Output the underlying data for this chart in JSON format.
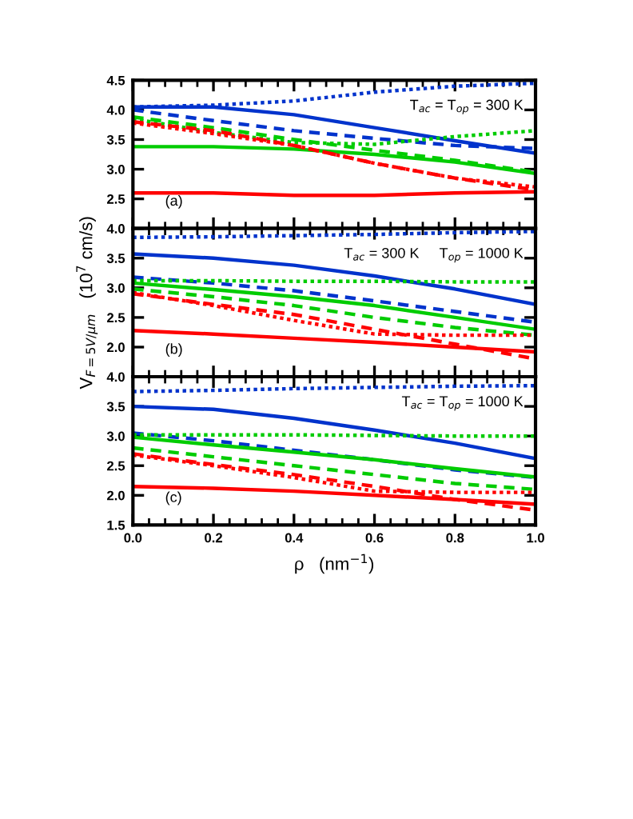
{
  "chart_data": [
    {
      "type": "line",
      "annotations": [
        "(a)",
        "T$_{ac}$ = T$_{op}$ = 300 K"
      ],
      "x": [
        0,
        0.2,
        0.4,
        0.6,
        0.8,
        1.0
      ],
      "xlim": [
        0,
        1
      ],
      "xticks": [
        0.0,
        0.2,
        0.4,
        0.6,
        0.8,
        1.0
      ],
      "ylim": [
        2.0,
        4.5
      ],
      "yticks": [
        2.5,
        {
          "value": 3,
          "label": "3.0"
        },
        3.5,
        {
          "value": 4,
          "label": "4.0"
        },
        4.5
      ],
      "tick_labels": "y",
      "legend": false,
      "grid": false,
      "series": [
        {
          "color": "#0033cc",
          "line_style": "dotted",
          "values": [
            4.05,
            4.08,
            4.15,
            4.3,
            4.4,
            4.45
          ]
        },
        {
          "color": "#0033cc",
          "line_style": "solid",
          "values": [
            4.05,
            4.05,
            3.92,
            3.7,
            3.48,
            3.27
          ]
        },
        {
          "color": "#0033cc",
          "line_style": "dashed",
          "values": [
            4.0,
            3.82,
            3.65,
            3.52,
            3.4,
            3.35
          ]
        },
        {
          "color": "#00cc00",
          "line_style": "dotted",
          "values": [
            3.85,
            3.62,
            3.45,
            3.42,
            3.55,
            3.65
          ]
        },
        {
          "color": "#00cc00",
          "line_style": "solid",
          "values": [
            3.38,
            3.38,
            3.34,
            3.25,
            3.12,
            2.93
          ]
        },
        {
          "color": "#00cc00",
          "line_style": "dashed",
          "values": [
            3.88,
            3.7,
            3.5,
            3.32,
            3.15,
            2.95
          ]
        },
        {
          "color": "#ff0000",
          "line_style": "dotted",
          "values": [
            3.78,
            3.6,
            3.4,
            3.1,
            2.85,
            2.7
          ]
        },
        {
          "color": "#ff0000",
          "line_style": "dashed",
          "values": [
            3.8,
            3.65,
            3.4,
            3.1,
            2.85,
            2.65
          ]
        },
        {
          "color": "#ff0000",
          "line_style": "solid",
          "values": [
            2.6,
            2.6,
            2.56,
            2.56,
            2.6,
            2.62
          ]
        }
      ]
    },
    {
      "type": "line",
      "ylabel": "V$_{F=5V/μm}$   (10$^{7}$ cm/s)",
      "annotations": [
        "(b)",
        "T$_{ac}$ = 300 K     T$_{op}$ = 1000 K"
      ],
      "x": [
        0,
        0.2,
        0.4,
        0.6,
        0.8,
        1.0
      ],
      "xlim": [
        0,
        1
      ],
      "xticks": [
        0.0,
        0.2,
        0.4,
        0.6,
        0.8,
        1.0
      ],
      "ylim": [
        1.5,
        4.0
      ],
      "yticks": [
        {
          "value": 2,
          "label": "2.0"
        },
        2.5,
        {
          "value": 3,
          "label": "3.0"
        },
        3.5,
        {
          "value": 4,
          "label": "4.0"
        }
      ],
      "tick_labels": "y",
      "legend": false,
      "grid": false,
      "series": [
        {
          "color": "#0033cc",
          "line_style": "dotted",
          "values": [
            3.85,
            3.86,
            3.88,
            3.9,
            3.93,
            3.95
          ]
        },
        {
          "color": "#0033cc",
          "line_style": "solid",
          "values": [
            3.57,
            3.5,
            3.38,
            3.2,
            2.98,
            2.72
          ]
        },
        {
          "color": "#0033cc",
          "line_style": "dashed",
          "values": [
            3.18,
            3.08,
            2.95,
            2.78,
            2.6,
            2.42
          ]
        },
        {
          "color": "#00cc00",
          "line_style": "dotted",
          "values": [
            3.12,
            3.12,
            3.11,
            3.11,
            3.1,
            3.1
          ]
        },
        {
          "color": "#00cc00",
          "line_style": "solid",
          "values": [
            3.08,
            2.97,
            2.85,
            2.7,
            2.5,
            2.3
          ]
        },
        {
          "color": "#00cc00",
          "line_style": "dashed",
          "values": [
            2.98,
            2.85,
            2.7,
            2.5,
            2.33,
            2.2
          ]
        },
        {
          "color": "#ff0000",
          "line_style": "dotted",
          "values": [
            2.92,
            2.7,
            2.45,
            2.22,
            2.2,
            2.2
          ]
        },
        {
          "color": "#ff0000",
          "line_style": "dashed",
          "values": [
            2.9,
            2.72,
            2.55,
            2.3,
            2.05,
            1.8
          ]
        },
        {
          "color": "#ff0000",
          "line_style": "solid",
          "values": [
            2.28,
            2.22,
            2.15,
            2.08,
            2.0,
            1.92
          ]
        }
      ]
    },
    {
      "type": "line",
      "xlabel": "ρ   (nm$^{−1}$)",
      "annotations": [
        "(c)",
        "T$_{ac}$ = T$_{op}$ = 1000 K"
      ],
      "x": [
        0,
        0.2,
        0.4,
        0.6,
        0.8,
        1.0
      ],
      "xlim": [
        0,
        1
      ],
      "xticks": [
        {
          "value": 0,
          "label": "0.0"
        },
        0.2,
        0.4,
        0.6,
        0.8,
        {
          "value": 1,
          "label": "1.0"
        }
      ],
      "ylim": [
        1.5,
        4.0
      ],
      "yticks": [
        1.5,
        {
          "value": 2,
          "label": "2.0"
        },
        2.5,
        {
          "value": 3,
          "label": "3.0"
        },
        3.5,
        {
          "value": 4,
          "label": "4.0"
        }
      ],
      "legend": false,
      "grid": false,
      "series": [
        {
          "color": "#0033cc",
          "line_style": "dotted",
          "values": [
            3.75,
            3.77,
            3.8,
            3.82,
            3.84,
            3.85
          ]
        },
        {
          "color": "#0033cc",
          "line_style": "solid",
          "values": [
            3.5,
            3.45,
            3.3,
            3.1,
            2.88,
            2.62
          ]
        },
        {
          "color": "#0033cc",
          "line_style": "dashed",
          "values": [
            3.05,
            2.92,
            2.76,
            2.6,
            2.43,
            2.3
          ]
        },
        {
          "color": "#00cc00",
          "line_style": "dotted",
          "values": [
            3.02,
            3.02,
            3.02,
            3.01,
            3.0,
            3.0
          ]
        },
        {
          "color": "#00cc00",
          "line_style": "solid",
          "values": [
            2.98,
            2.85,
            2.73,
            2.6,
            2.45,
            2.31
          ]
        },
        {
          "color": "#00cc00",
          "line_style": "dashed",
          "values": [
            2.8,
            2.65,
            2.5,
            2.35,
            2.2,
            2.1
          ]
        },
        {
          "color": "#ff0000",
          "line_style": "dotted",
          "values": [
            2.68,
            2.5,
            2.3,
            2.07,
            2.05,
            2.05
          ]
        },
        {
          "color": "#ff0000",
          "line_style": "dashed",
          "values": [
            2.7,
            2.52,
            2.35,
            2.15,
            1.93,
            1.75
          ]
        },
        {
          "color": "#ff0000",
          "line_style": "solid",
          "values": [
            2.15,
            2.12,
            2.07,
            2.0,
            1.93,
            1.85
          ]
        }
      ]
    }
  ]
}
